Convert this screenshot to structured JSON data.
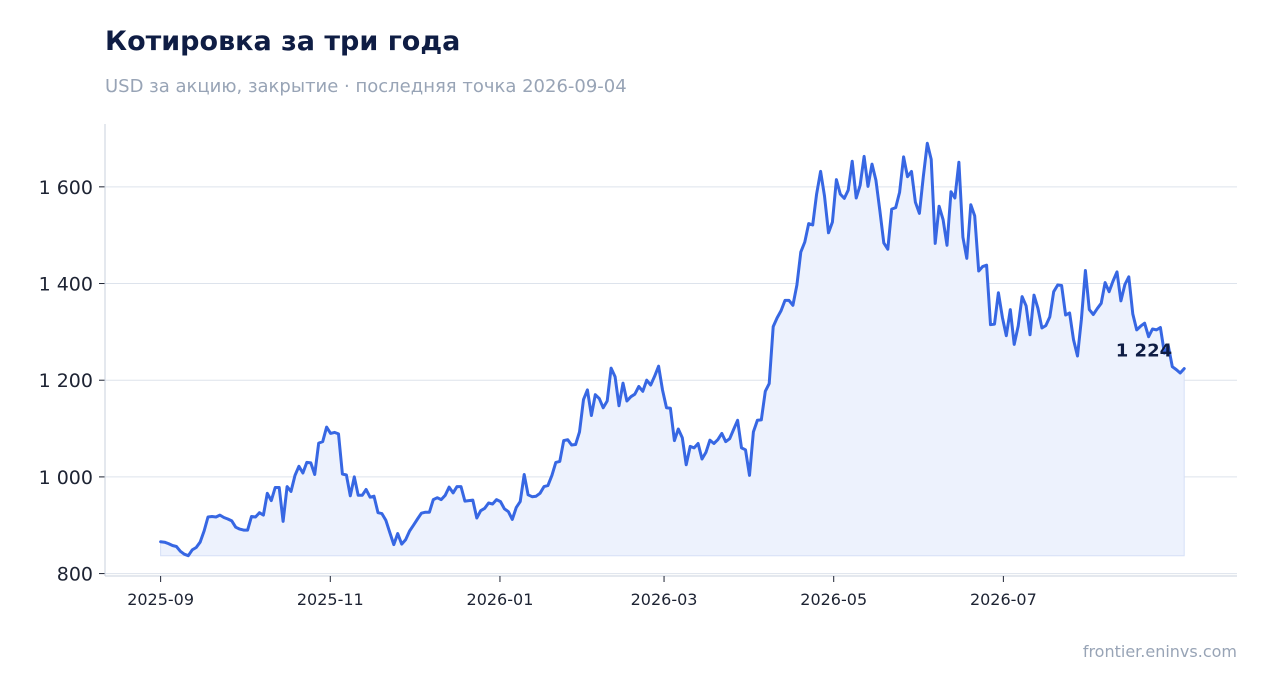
{
  "header": {
    "title": "Котировка за три года",
    "subtitle": "USD за акцию, закрытие · последняя точка 2026-09-04"
  },
  "footer": {
    "source": "frontier.eninvs.com"
  },
  "colors": {
    "line": "#3767e3",
    "area": "#edf2fd",
    "grid": "#dde3ec",
    "axis": "#c9d1dd"
  },
  "chart_data": {
    "type": "area",
    "title": "Котировка за три года",
    "subtitle": "USD за акцию, закрытие · последняя точка 2026-09-04",
    "xlabel": "",
    "ylabel": "",
    "x_range": [
      "2025-08-12",
      "2026-09-23"
    ],
    "ylim": [
      795,
      1730
    ],
    "y_ticks": [
      800,
      1000,
      1200,
      1400,
      1600
    ],
    "y_tick_labels": [
      "800",
      "1 000",
      "1 200",
      "1 400",
      "1 600"
    ],
    "x_ticks": [
      "2025-09-01",
      "2025-11-01",
      "2026-01-01",
      "2026-03-01",
      "2026-05-01",
      "2026-07-01"
    ],
    "x_tick_labels": [
      "2025-09",
      "2025-11",
      "2026-01",
      "2026-03",
      "2026-05",
      "2026-07"
    ],
    "grid": "horizontal",
    "last_value_label": "1 224",
    "series": [
      {
        "start_date": "2025-09-01",
        "end_date": "2026-09-04",
        "values": [
          866,
          865,
          862,
          858,
          856,
          846,
          840,
          837,
          849,
          854,
          865,
          888,
          917,
          918,
          917,
          921,
          916,
          913,
          909,
          896,
          892,
          890,
          890,
          918,
          917,
          926,
          921,
          966,
          951,
          978,
          978,
          908,
          980,
          970,
          1003,
          1022,
          1008,
          1030,
          1029,
          1005,
          1070,
          1073,
          1103,
          1090,
          1092,
          1089,
          1006,
          1004,
          961,
          1000,
          962,
          962,
          974,
          958,
          960,
          926,
          924,
          910,
          885,
          860,
          883,
          861,
          870,
          888,
          900,
          913,
          925,
          927,
          927,
          953,
          957,
          953,
          962,
          979,
          967,
          980,
          980,
          950,
          951,
          952,
          915,
          930,
          935,
          946,
          944,
          953,
          949,
          934,
          928,
          912,
          937,
          949,
          1005,
          963,
          959,
          960,
          966,
          980,
          982,
          1003,
          1030,
          1032,
          1075,
          1077,
          1066,
          1067,
          1093,
          1160,
          1180,
          1127,
          1170,
          1162,
          1143,
          1157,
          1225,
          1207,
          1147,
          1194,
          1157,
          1166,
          1171,
          1187,
          1177,
          1200,
          1190,
          1208,
          1229,
          1180,
          1143,
          1142,
          1075,
          1099,
          1081,
          1025,
          1063,
          1060,
          1069,
          1037,
          1051,
          1076,
          1069,
          1077,
          1090,
          1073,
          1079,
          1098,
          1117,
          1060,
          1056,
          1003,
          1093,
          1117,
          1118,
          1177,
          1193,
          1311,
          1329,
          1344,
          1365,
          1365,
          1355,
          1397,
          1465,
          1486,
          1524,
          1521,
          1585,
          1632,
          1581,
          1505,
          1527,
          1615,
          1585,
          1576,
          1593,
          1653,
          1577,
          1603,
          1663,
          1601,
          1647,
          1614,
          1550,
          1484,
          1471,
          1554,
          1557,
          1589,
          1662,
          1621,
          1632,
          1568,
          1545,
          1621,
          1690,
          1657,
          1483,
          1560,
          1532,
          1479,
          1590,
          1577,
          1651,
          1496,
          1452,
          1563,
          1540,
          1426,
          1435,
          1438,
          1315,
          1316,
          1381,
          1330,
          1292,
          1346,
          1274,
          1312,
          1373,
          1354,
          1294,
          1376,
          1349,
          1308,
          1313,
          1331,
          1383,
          1397,
          1396,
          1335,
          1339,
          1284,
          1250,
          1326,
          1427,
          1346,
          1336,
          1348,
          1359,
          1402,
          1383,
          1405,
          1424,
          1364,
          1398,
          1414,
          1337,
          1304,
          1312,
          1318,
          1290,
          1306,
          1304,
          1309,
          1256,
          1271,
          1228,
          1222,
          1215,
          1224
        ]
      }
    ]
  }
}
